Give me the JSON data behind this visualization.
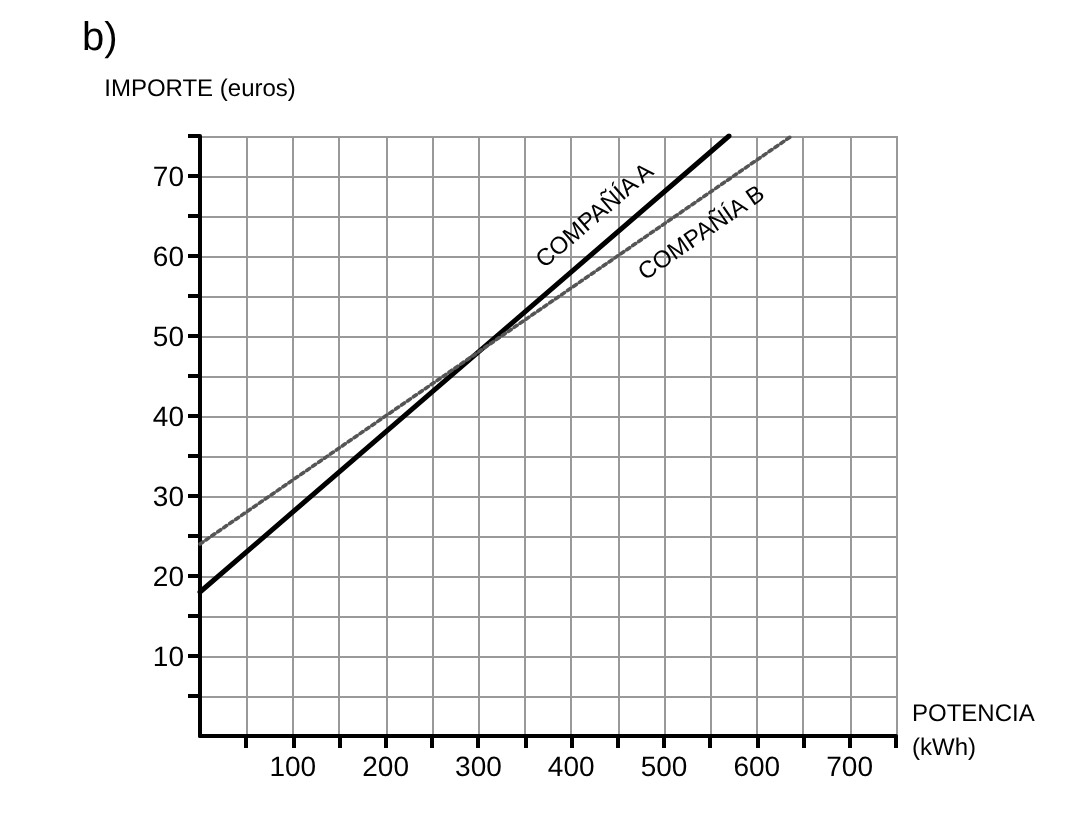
{
  "chart_data": {
    "type": "line",
    "title": "b)",
    "xlabel": "POTENCIA\n(kWh)",
    "ylabel": "IMPORTE (euros)",
    "xlim": [
      0,
      750
    ],
    "ylim": [
      0,
      75
    ],
    "xticks": [
      {
        "value": 50,
        "label": null
      },
      100,
      {
        "value": 150,
        "label": null
      },
      200,
      {
        "value": 250,
        "label": null
      },
      300,
      {
        "value": 350,
        "label": null
      },
      400,
      {
        "value": 450,
        "label": null
      },
      500,
      {
        "value": 550,
        "label": null
      },
      600,
      {
        "value": 650,
        "label": null
      },
      700,
      {
        "value": 750,
        "label": null
      }
    ],
    "yticks": [
      {
        "value": 5,
        "label": null
      },
      10,
      {
        "value": 15,
        "label": null
      },
      20,
      {
        "value": 25,
        "label": null
      },
      30,
      {
        "value": 35,
        "label": null
      },
      40,
      {
        "value": 45,
        "label": null
      },
      50,
      {
        "value": 55,
        "label": null
      },
      60,
      {
        "value": 65,
        "label": null
      },
      70,
      {
        "value": 75,
        "label": null
      }
    ],
    "grid": true,
    "legend": false,
    "marker": "none",
    "series": [
      {
        "name": "COMPAÑÍA A",
        "color": "#000000",
        "line_style": "solid",
        "x": [
          0,
          570
        ],
        "values": [
          18,
          75
        ]
      },
      {
        "name": "COMPAÑÍA B",
        "color": "#555555",
        "line_style": "dotted",
        "x": [
          0,
          637.5
        ],
        "values": [
          24,
          75
        ]
      }
    ]
  }
}
